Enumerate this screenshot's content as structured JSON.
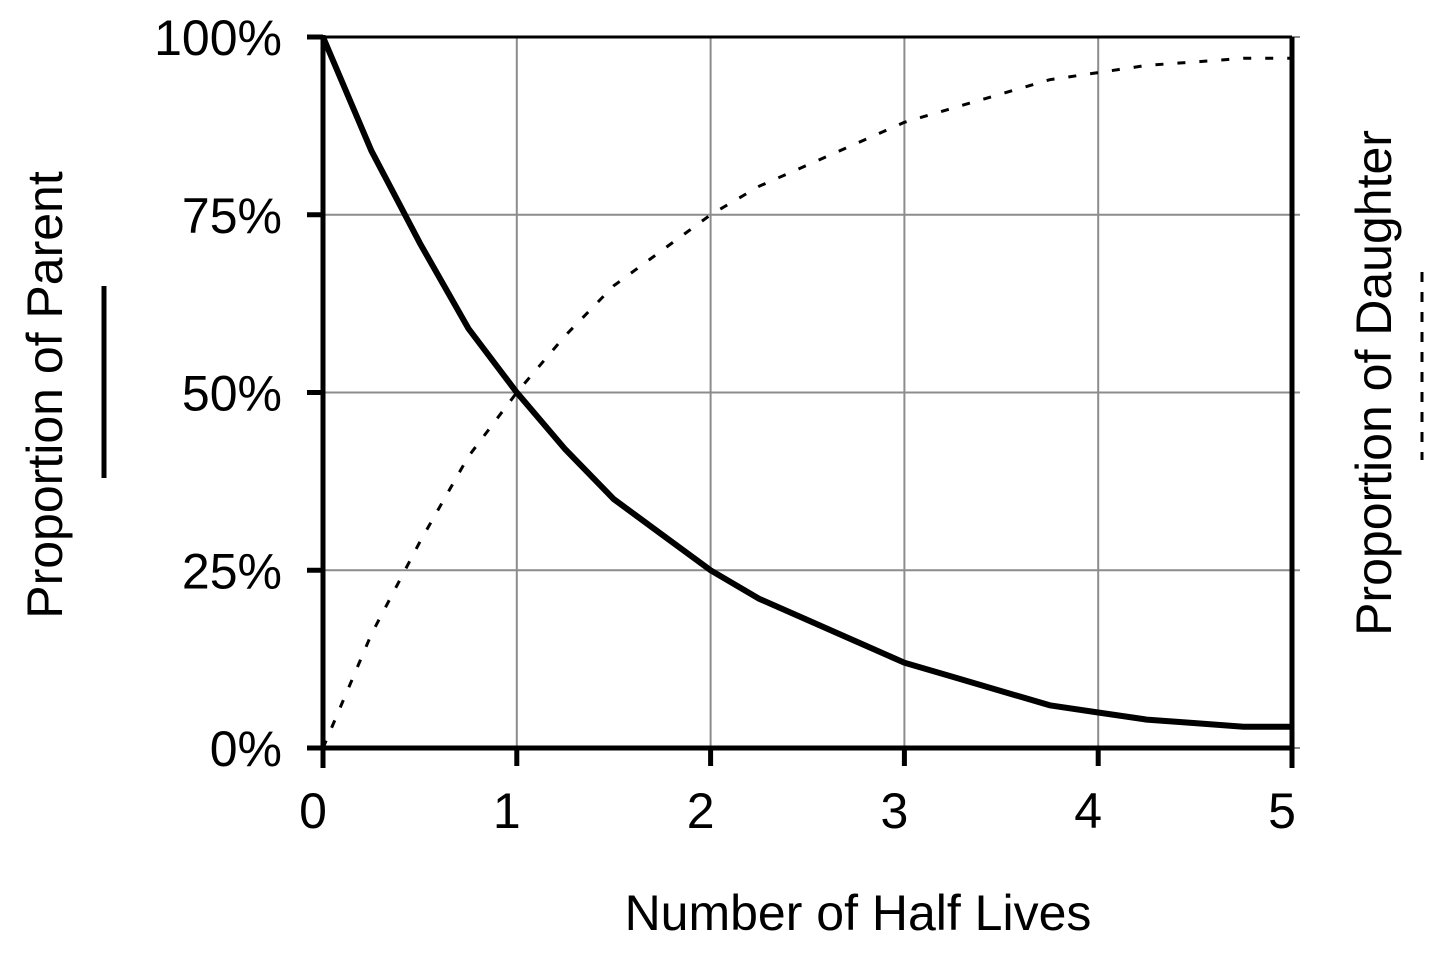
{
  "chart_data": {
    "type": "line",
    "title": "",
    "xlabel": "Number of Half Lives",
    "ylabel_left": "Proportion of Parent",
    "ylabel_right": "Proportion of Daughter",
    "xlim": [
      0,
      5
    ],
    "ylim": [
      0,
      100
    ],
    "x_ticks": [
      "0",
      "1",
      "2",
      "3",
      "4",
      "5"
    ],
    "y_ticks": [
      "0%",
      "25%",
      "50%",
      "75%",
      "100%"
    ],
    "grid": true,
    "legend": "inline line samples beside axis titles (solid = parent, dashed = daughter)",
    "x": [
      0,
      0.25,
      0.5,
      0.75,
      1,
      1.25,
      1.5,
      1.75,
      2,
      2.25,
      2.5,
      2.75,
      3,
      3.25,
      3.5,
      3.75,
      4,
      4.25,
      4.5,
      4.75,
      5
    ],
    "series": [
      {
        "name": "Proportion of Parent",
        "style": "solid",
        "values": [
          100,
          84,
          71,
          59,
          50,
          42,
          35,
          30,
          25,
          21,
          18,
          15,
          12,
          10,
          8,
          6,
          5,
          4,
          3.5,
          3,
          3
        ]
      },
      {
        "name": "Proportion of Daughter",
        "style": "dashed",
        "values": [
          0,
          16,
          29,
          41,
          50,
          58,
          65,
          70,
          75,
          79,
          82,
          85,
          88,
          90,
          92,
          94,
          95,
          96,
          96.5,
          97,
          97
        ]
      }
    ]
  },
  "colors": {
    "axis": "#000000",
    "grid": "#8c8c8c",
    "line": "#000000",
    "background": "#ffffff"
  }
}
